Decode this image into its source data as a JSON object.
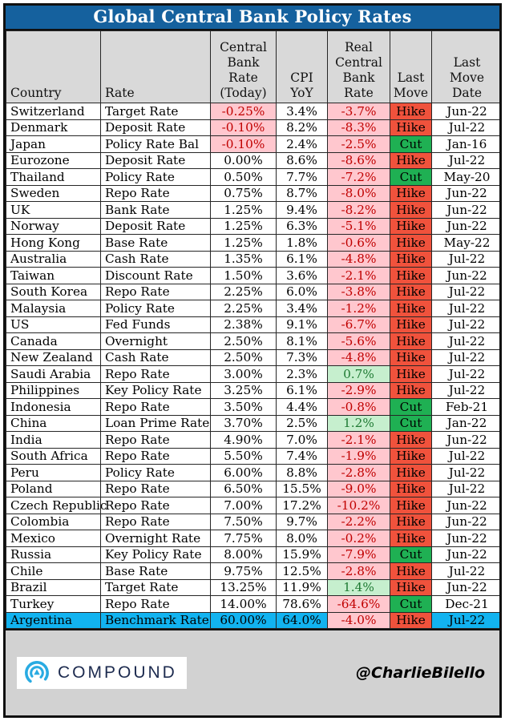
{
  "title": "Global Central Bank Policy Rates",
  "credit": "@CharlieBilello",
  "brand": {
    "name": "COMPOUND",
    "icon": "compound-arcs-logo"
  },
  "colors": {
    "title_bar_blue": "#15619E",
    "header_gray": "#D9D9D9",
    "negative_bg_pink": "#FFC7CE",
    "negative_text_red": "#C00000",
    "positive_bg_green": "#C6EFCE",
    "positive_text_green": "#1F7A33",
    "hike_red": "#F0523C",
    "cut_green": "#1FB053",
    "highlight_cyan": "#12B3F0",
    "footer_gray": "#D2D2D2",
    "logo_blue": "#29ABE2",
    "logo_navy": "#1D2B4F"
  },
  "chart_data": {
    "type": "table",
    "title": "Global Central Bank Policy Rates",
    "columns": [
      "Country",
      "Rate",
      "Central Bank Rate (Today)",
      "CPI YoY",
      "Real Central Bank Rate",
      "Last Move",
      "Last Move Date"
    ],
    "highlight_row": "Argentina",
    "rows": [
      [
        "Switzerland",
        "Target Rate",
        "-0.25%",
        "3.4%",
        "-3.7%",
        "Hike",
        "Jun-22"
      ],
      [
        "Denmark",
        "Deposit Rate",
        "-0.10%",
        "8.2%",
        "-8.3%",
        "Hike",
        "Jul-22"
      ],
      [
        "Japan",
        "Policy Rate Bal",
        "-0.10%",
        "2.4%",
        "-2.5%",
        "Cut",
        "Jan-16"
      ],
      [
        "Eurozone",
        "Deposit Rate",
        "0.00%",
        "8.6%",
        "-8.6%",
        "Hike",
        "Jul-22"
      ],
      [
        "Thailand",
        "Policy Rate",
        "0.50%",
        "7.7%",
        "-7.2%",
        "Cut",
        "May-20"
      ],
      [
        "Sweden",
        "Repo Rate",
        "0.75%",
        "8.7%",
        "-8.0%",
        "Hike",
        "Jun-22"
      ],
      [
        "UK",
        "Bank Rate",
        "1.25%",
        "9.4%",
        "-8.2%",
        "Hike",
        "Jun-22"
      ],
      [
        "Norway",
        "Deposit Rate",
        "1.25%",
        "6.3%",
        "-5.1%",
        "Hike",
        "Jun-22"
      ],
      [
        "Hong Kong",
        "Base Rate",
        "1.25%",
        "1.8%",
        "-0.6%",
        "Hike",
        "May-22"
      ],
      [
        "Australia",
        "Cash Rate",
        "1.35%",
        "6.1%",
        "-4.8%",
        "Hike",
        "Jul-22"
      ],
      [
        "Taiwan",
        "Discount Rate",
        "1.50%",
        "3.6%",
        "-2.1%",
        "Hike",
        "Jun-22"
      ],
      [
        "South Korea",
        "Repo Rate",
        "2.25%",
        "6.0%",
        "-3.8%",
        "Hike",
        "Jul-22"
      ],
      [
        "Malaysia",
        "Policy Rate",
        "2.25%",
        "3.4%",
        "-1.2%",
        "Hike",
        "Jul-22"
      ],
      [
        "US",
        "Fed Funds",
        "2.38%",
        "9.1%",
        "-6.7%",
        "Hike",
        "Jul-22"
      ],
      [
        "Canada",
        "Overnight",
        "2.50%",
        "8.1%",
        "-5.6%",
        "Hike",
        "Jul-22"
      ],
      [
        "New Zealand",
        "Cash Rate",
        "2.50%",
        "7.3%",
        "-4.8%",
        "Hike",
        "Jul-22"
      ],
      [
        "Saudi Arabia",
        "Repo Rate",
        "3.00%",
        "2.3%",
        "0.7%",
        "Hike",
        "Jul-22"
      ],
      [
        "Philippines",
        "Key Policy Rate",
        "3.25%",
        "6.1%",
        "-2.9%",
        "Hike",
        "Jul-22"
      ],
      [
        "Indonesia",
        "Repo Rate",
        "3.50%",
        "4.4%",
        "-0.8%",
        "Cut",
        "Feb-21"
      ],
      [
        "China",
        "Loan Prime Rate",
        "3.70%",
        "2.5%",
        "1.2%",
        "Cut",
        "Jan-22"
      ],
      [
        "India",
        "Repo Rate",
        "4.90%",
        "7.0%",
        "-2.1%",
        "Hike",
        "Jun-22"
      ],
      [
        "South Africa",
        "Repo Rate",
        "5.50%",
        "7.4%",
        "-1.9%",
        "Hike",
        "Jul-22"
      ],
      [
        "Peru",
        "Policy Rate",
        "6.00%",
        "8.8%",
        "-2.8%",
        "Hike",
        "Jul-22"
      ],
      [
        "Poland",
        "Repo Rate",
        "6.50%",
        "15.5%",
        "-9.0%",
        "Hike",
        "Jul-22"
      ],
      [
        "Czech Republic",
        "Repo Rate",
        "7.00%",
        "17.2%",
        "-10.2%",
        "Hike",
        "Jun-22"
      ],
      [
        "Colombia",
        "Repo Rate",
        "7.50%",
        "9.7%",
        "-2.2%",
        "Hike",
        "Jun-22"
      ],
      [
        "Mexico",
        "Overnight Rate",
        "7.75%",
        "8.0%",
        "-0.2%",
        "Hike",
        "Jun-22"
      ],
      [
        "Russia",
        "Key Policy Rate",
        "8.00%",
        "15.9%",
        "-7.9%",
        "Cut",
        "Jun-22"
      ],
      [
        "Chile",
        "Base Rate",
        "9.75%",
        "12.5%",
        "-2.8%",
        "Hike",
        "Jul-22"
      ],
      [
        "Brazil",
        "Target Rate",
        "13.25%",
        "11.9%",
        "1.4%",
        "Hike",
        "Jun-22"
      ],
      [
        "Turkey",
        "Repo Rate",
        "14.00%",
        "78.6%",
        "-64.6%",
        "Cut",
        "Dec-21"
      ],
      [
        "Argentina",
        "Benchmark Rate",
        "60.00%",
        "64.0%",
        "-4.0%",
        "Hike",
        "Jul-22"
      ]
    ]
  }
}
